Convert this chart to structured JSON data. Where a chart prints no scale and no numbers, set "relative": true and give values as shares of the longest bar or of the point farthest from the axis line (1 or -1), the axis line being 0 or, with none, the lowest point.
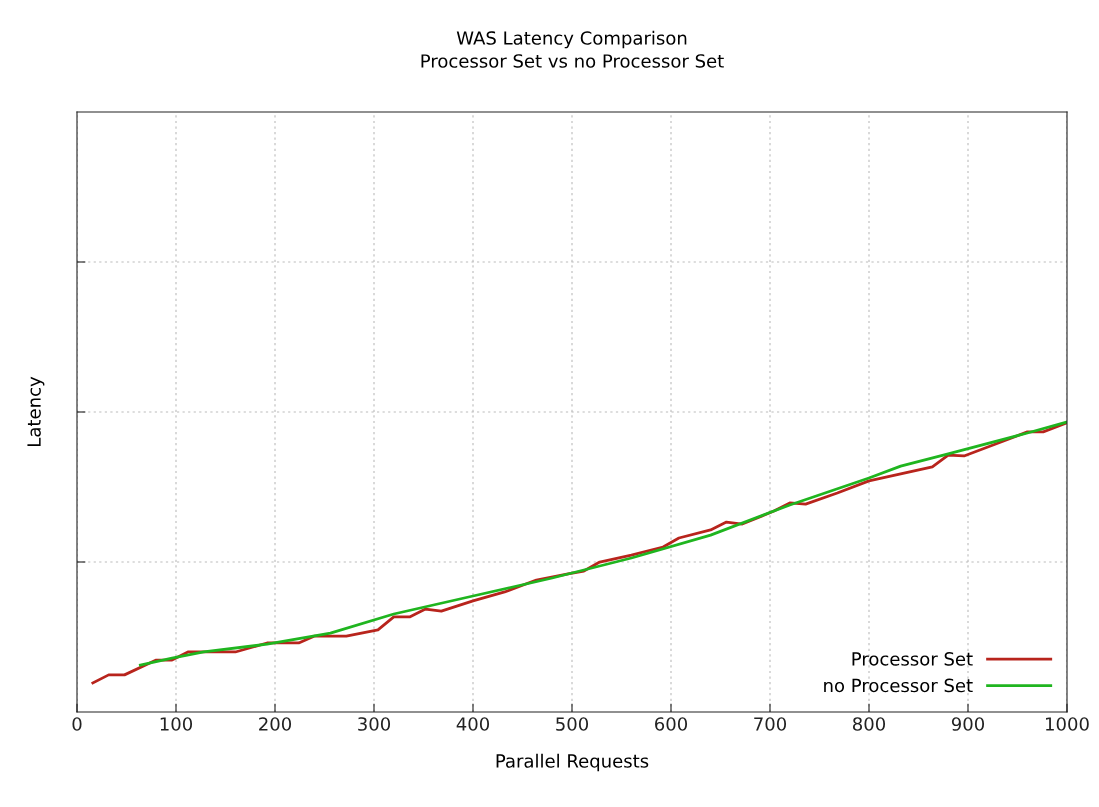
{
  "chart_data": {
    "type": "line",
    "title": "WAS Latency Comparison\nProcessor Set vs no Processor Set",
    "xlabel": "Parallel Requests",
    "ylabel": "Latency",
    "relative": true,
    "xlim": [
      0,
      1000
    ],
    "xticks": [
      0,
      100,
      200,
      300,
      400,
      500,
      600,
      700,
      800,
      900,
      1000
    ],
    "grid": true,
    "legend": "bottom right",
    "line_style": "solid",
    "marker": "none",
    "series": [
      {
        "name": "Processor Set",
        "color": "#b8241c",
        "x": [
          16,
          32,
          48,
          80,
          96,
          112,
          160,
          192,
          224,
          240,
          272,
          304,
          320,
          336,
          352,
          368,
          400,
          432,
          464,
          496,
          512,
          528,
          560,
          592,
          608,
          640,
          656,
          672,
          704,
          720,
          736,
          768,
          800,
          832,
          864,
          880,
          896,
          928,
          960,
          976,
          1000
        ],
        "values": [
          0.1,
          0.128,
          0.128,
          0.179,
          0.179,
          0.207,
          0.207,
          0.238,
          0.238,
          0.262,
          0.262,
          0.283,
          0.328,
          0.328,
          0.355,
          0.348,
          0.383,
          0.414,
          0.455,
          0.476,
          0.486,
          0.517,
          0.541,
          0.569,
          0.6,
          0.628,
          0.655,
          0.648,
          0.693,
          0.721,
          0.717,
          0.755,
          0.797,
          0.821,
          0.845,
          0.886,
          0.883,
          0.924,
          0.966,
          0.966,
          0.997
        ]
      },
      {
        "name": "no Processor Set",
        "color": "#1fb51f",
        "x": [
          64,
          96,
          128,
          192,
          256,
          320,
          400,
          480,
          560,
          640,
          720,
          800,
          832,
          880,
          960,
          1000
        ],
        "values": [
          0.162,
          0.186,
          0.207,
          0.234,
          0.272,
          0.338,
          0.4,
          0.462,
          0.531,
          0.61,
          0.714,
          0.807,
          0.848,
          0.89,
          0.962,
          1.0
        ]
      }
    ]
  }
}
